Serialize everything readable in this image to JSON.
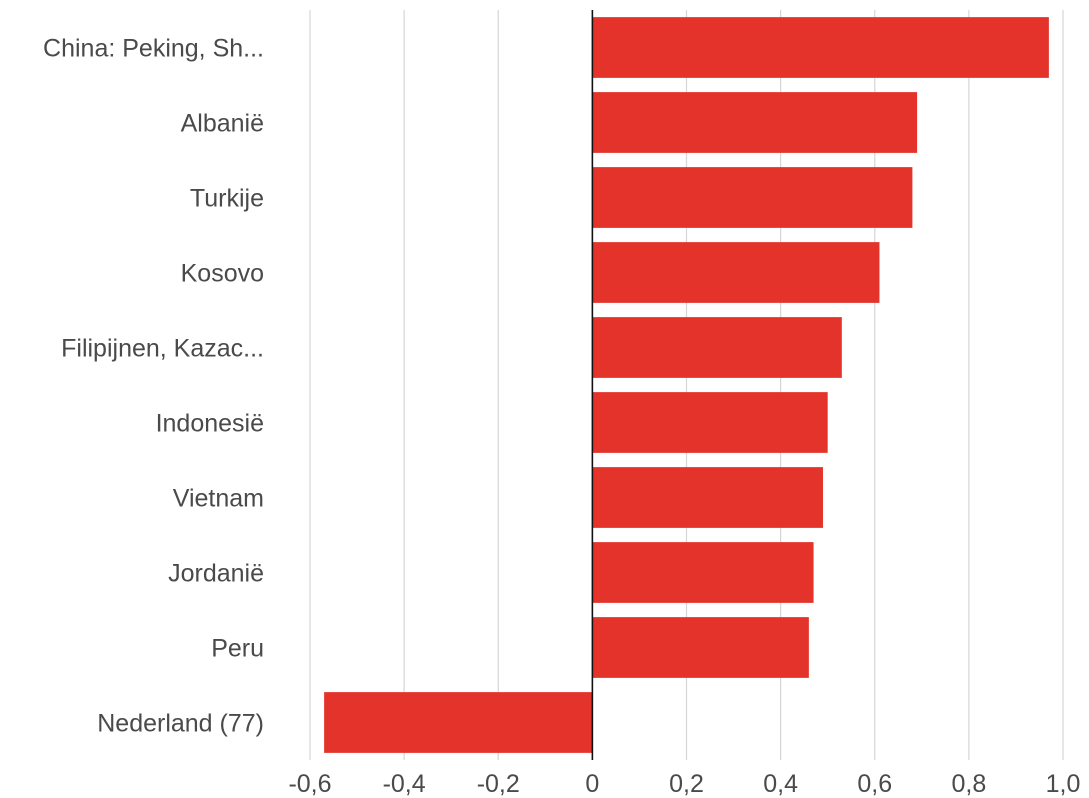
{
  "chart_data": {
    "type": "bar",
    "orientation": "horizontal",
    "categories": [
      "China: Peking, Sh...",
      "Albanië",
      "Turkije",
      "Kosovo",
      "Filipijnen, Kazac...",
      "Indonesië",
      "Vietnam",
      "Jordanië",
      "Peru",
      "Nederland (77)"
    ],
    "values": [
      0.97,
      0.69,
      0.68,
      0.61,
      0.53,
      0.5,
      0.49,
      0.47,
      0.46,
      -0.57
    ],
    "xlim": [
      -0.6,
      1.0
    ],
    "xticks": [
      -0.6,
      -0.4,
      -0.2,
      0,
      0.2,
      0.4,
      0.6,
      0.8,
      1.0
    ],
    "xtick_labels": [
      "-0,6",
      "-0,4",
      "-0,2",
      "0",
      "0,2",
      "0,4",
      "0,6",
      "0,8",
      "1,0"
    ],
    "bar_color": "#e4332a",
    "grid": true,
    "title": "",
    "xlabel": "",
    "ylabel": ""
  }
}
